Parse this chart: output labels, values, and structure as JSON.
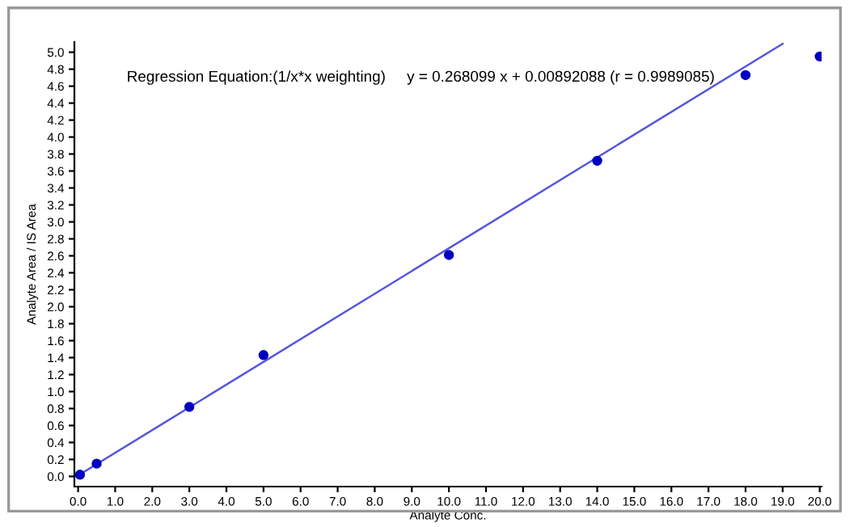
{
  "chart_data": {
    "type": "scatter",
    "xlabel": "Analyte Conc.",
    "ylabel": "Analyte Area / IS Area",
    "annotations": [
      "Regression Equation:(1/x*x weighting)     y = 0.268099 x + 0.00892088 (r = 0.9989085)"
    ],
    "series": [
      {
        "color": "#0000c0",
        "marker": "circle",
        "x": [
          0.05,
          0.5,
          3.0,
          5.0,
          10.0,
          14.0,
          18.0,
          20.0
        ],
        "values": [
          0.02,
          0.15,
          0.82,
          1.43,
          2.61,
          3.72,
          4.73,
          4.95
        ]
      },
      {
        "type": "line",
        "color": "#5555dd",
        "marker": "none",
        "line_style": "solid",
        "x": [
          0.0,
          19.0
        ],
        "values": [
          0.01,
          5.1
        ]
      }
    ],
    "xlim": [
      -0.1,
      20.05
    ],
    "ylim": [
      -0.12,
      5.12
    ],
    "xticks": [
      {
        "value": 0,
        "label": "0.0"
      },
      {
        "value": 1,
        "label": "1.0"
      },
      {
        "value": 2,
        "label": "2.0"
      },
      {
        "value": 3,
        "label": "3.0"
      },
      {
        "value": 4,
        "label": "4.0"
      },
      {
        "value": 5,
        "label": "5.0"
      },
      {
        "value": 6,
        "label": "6.0"
      },
      {
        "value": 7,
        "label": "7.0"
      },
      {
        "value": 8,
        "label": "8.0"
      },
      {
        "value": 9,
        "label": "9.0"
      },
      {
        "value": 10,
        "label": "10.0"
      },
      {
        "value": 11,
        "label": "11.0"
      },
      {
        "value": 12,
        "label": "12.0"
      },
      {
        "value": 13,
        "label": "13.0"
      },
      {
        "value": 14,
        "label": "14.0"
      },
      {
        "value": 15,
        "label": "15.0"
      },
      {
        "value": 16,
        "label": "16.0"
      },
      {
        "value": 17,
        "label": "17.0"
      },
      {
        "value": 18,
        "label": "18.0"
      },
      {
        "value": 19,
        "label": "19.0"
      },
      {
        "value": 20,
        "label": "20.0"
      }
    ],
    "yticks": [
      {
        "value": 0,
        "label": "0.0"
      },
      {
        "value": 0.2,
        "label": "0.2"
      },
      {
        "value": 0.4,
        "label": "0.4"
      },
      {
        "value": 0.6,
        "label": "0.6"
      },
      {
        "value": 0.8,
        "label": "0.8"
      },
      {
        "value": 1,
        "label": "1.0"
      },
      {
        "value": 1.2,
        "label": "1.2"
      },
      {
        "value": 1.4,
        "label": "1.4"
      },
      {
        "value": 1.6,
        "label": "1.6"
      },
      {
        "value": 1.8,
        "label": "1.8"
      },
      {
        "value": 2,
        "label": "2.0"
      },
      {
        "value": 2.2,
        "label": "2.2"
      },
      {
        "value": 2.4,
        "label": "2.4"
      },
      {
        "value": 2.6,
        "label": "2.6"
      },
      {
        "value": 2.8,
        "label": "2.8"
      },
      {
        "value": 3,
        "label": "3.0"
      },
      {
        "value": 3.2,
        "label": "3.2"
      },
      {
        "value": 3.4,
        "label": "3.4"
      },
      {
        "value": 3.6,
        "label": "3.6"
      },
      {
        "value": 3.8,
        "label": "3.8"
      },
      {
        "value": 4,
        "label": "4.0"
      },
      {
        "value": 4.2,
        "label": "4.2"
      },
      {
        "value": 4.4,
        "label": "4.4"
      },
      {
        "value": 4.6,
        "label": "4.6"
      },
      {
        "value": 4.8,
        "label": "4.8"
      },
      {
        "value": 5,
        "label": "5.0"
      }
    ],
    "grid": false
  }
}
